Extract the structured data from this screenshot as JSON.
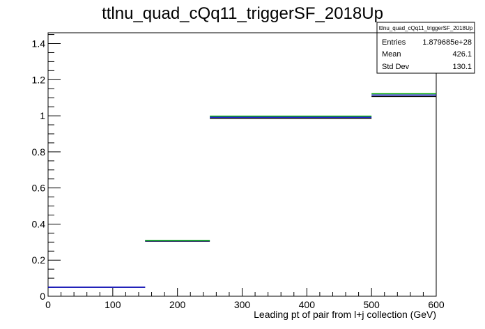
{
  "chart_data": {
    "type": "histogram",
    "title": "ttlnu_quad_cQq11_triggerSF_2018Up",
    "xlabel": "Leading pt of pair from l+j collection (GeV)",
    "ylabel": "",
    "xlim": [
      0,
      600
    ],
    "ylim": [
      0,
      1.46
    ],
    "x_ticks": [
      0,
      100,
      200,
      300,
      400,
      500,
      600
    ],
    "y_ticks": [
      0,
      0.2,
      0.4,
      0.6,
      0.8,
      1,
      1.2,
      1.4
    ],
    "x_tick_labels": [
      "0",
      "100",
      "200",
      "300",
      "400",
      "500",
      "600"
    ],
    "y_tick_labels": [
      "0",
      "0.2",
      "0.4",
      "0.6",
      "0.8",
      "1",
      "1.2",
      "1.4"
    ],
    "grid": false,
    "bins": [
      {
        "low": 0,
        "high": 150
      },
      {
        "low": 150,
        "high": 250
      },
      {
        "low": 250,
        "high": 500
      },
      {
        "low": 500,
        "high": 600
      }
    ],
    "series": [
      {
        "color": "#000000",
        "values": [
          0.05,
          0.305,
          0.985,
          1.107
        ]
      },
      {
        "color": "#0000cc",
        "values": [
          0.05,
          0.307,
          0.992,
          1.115
        ]
      },
      {
        "color": "#00aa00",
        "values": [
          null,
          0.309,
          0.998,
          1.122
        ]
      }
    ],
    "stats_box": {
      "title": "ttlnu_quad_cQq11_triggerSF_2018Up",
      "rows": [
        {
          "label": "Entries",
          "value": "1.879685e+28"
        },
        {
          "label": "Mean",
          "value": "426.1"
        },
        {
          "label": "Std Dev",
          "value": "130.1"
        }
      ]
    }
  }
}
